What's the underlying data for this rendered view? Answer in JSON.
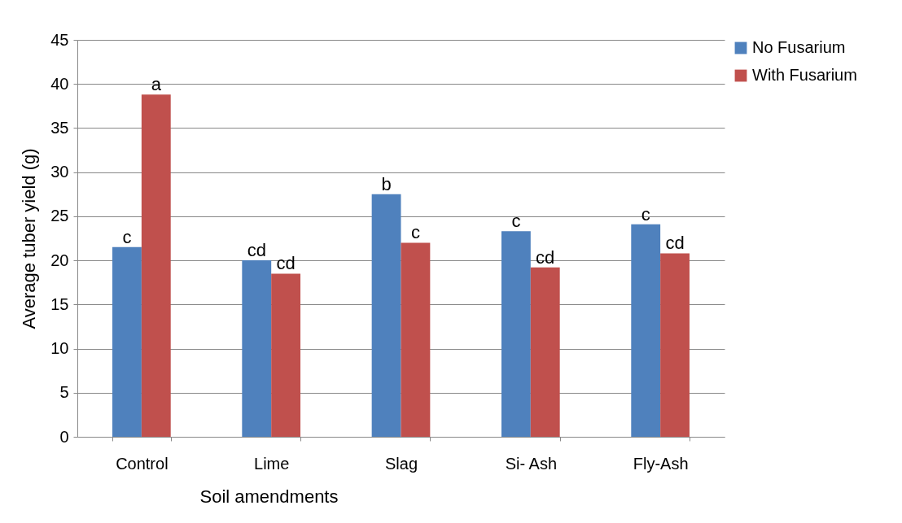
{
  "chart_data": {
    "type": "bar",
    "ylabel": "Average tuber  yield (g)",
    "xlabel": "Soil amendments",
    "categories": [
      "Control",
      "Lime",
      "Slag",
      "Si- Ash",
      "Fly-Ash"
    ],
    "series": [
      {
        "name": "No  Fusarium",
        "color": "#4f81bd",
        "values": [
          21.5,
          20.0,
          27.5,
          23.3,
          24.1
        ],
        "value_labels": [
          "c",
          "cd",
          "b",
          "c",
          "c"
        ]
      },
      {
        "name": "With Fusarium",
        "color": "#c0504d",
        "values": [
          38.8,
          18.5,
          22.0,
          19.2,
          20.8
        ],
        "value_labels": [
          "a",
          "cd",
          "c",
          "cd",
          "cd"
        ]
      }
    ],
    "ylim": [
      0,
      45
    ],
    "yticks": [
      0,
      5,
      10,
      15,
      20,
      25,
      30,
      35,
      40,
      45
    ],
    "grid": "y",
    "legend": "right"
  }
}
